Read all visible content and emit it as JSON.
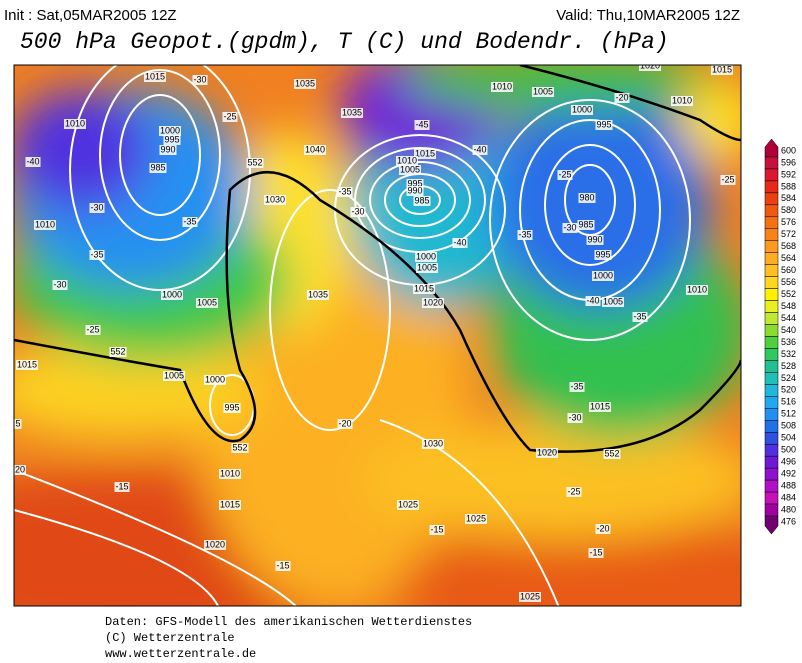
{
  "header": {
    "init": "Init : Sat,05MAR2005 12Z",
    "valid": "Valid: Thu,10MAR2005 12Z",
    "title": "500 hPa Geopot.(gpdm), T (C) und Bodendr. (hPa)"
  },
  "colorbar": {
    "labels": [
      600,
      596,
      592,
      588,
      584,
      580,
      576,
      572,
      568,
      564,
      560,
      556,
      552,
      548,
      544,
      540,
      536,
      532,
      528,
      524,
      520,
      516,
      512,
      508,
      504,
      500,
      496,
      492,
      488,
      484,
      480,
      476
    ],
    "colors": [
      "#b0003a",
      "#c8103e",
      "#dc1830",
      "#e82818",
      "#ec4010",
      "#f05a10",
      "#f47010",
      "#f88418",
      "#fa9a20",
      "#fcae20",
      "#fdc020",
      "#fed820",
      "#fff000",
      "#e8f020",
      "#c0e830",
      "#8cdc30",
      "#50d040",
      "#30c860",
      "#20c090",
      "#20c0b8",
      "#20b8d8",
      "#20a8f0",
      "#2090f0",
      "#2070e8",
      "#3050e0",
      "#5030e0",
      "#7018d8",
      "#9010d0",
      "#b010c8",
      "#c810b8",
      "#a000a0",
      "#700070"
    ]
  },
  "map_labels": [
    "1015",
    "-30",
    "1035",
    "1010",
    "1005",
    "-20",
    "1010",
    "1015",
    "1020",
    "1010",
    "-25",
    "1000",
    "995",
    "990",
    "985",
    "-40",
    "1035",
    "-45",
    "1040",
    "1015",
    "-40",
    "1000",
    "995",
    "1010",
    "1005",
    "995",
    "990",
    "985",
    "-35",
    "-30",
    "1030",
    "-30",
    "-35",
    "-35",
    "1010",
    "-25",
    "980",
    "985",
    "990",
    "995",
    "-30",
    "-35",
    "-25",
    "-40",
    "1000",
    "1005",
    "1015",
    "1020",
    "1000",
    "-40",
    "1005",
    "1010",
    "-35",
    "1035",
    "1000",
    "1005",
    "-30",
    "-25",
    "1015",
    "552",
    "1005",
    "1000",
    "995",
    "-20",
    "-35",
    "-30",
    "1015",
    "1030",
    "1020",
    "552",
    "1010",
    "-15",
    "-25",
    "1015",
    "1025",
    "1025",
    "-15",
    "-20",
    "1020",
    "-15",
    "-15",
    "1025",
    "20",
    "5",
    "552",
    "552"
  ],
  "footer": [
    "Daten: GFS-Modell des amerikanischen Wetterdienstes",
    "(C) Wetterzentrale",
    "www.wetterzentrale.de"
  ]
}
